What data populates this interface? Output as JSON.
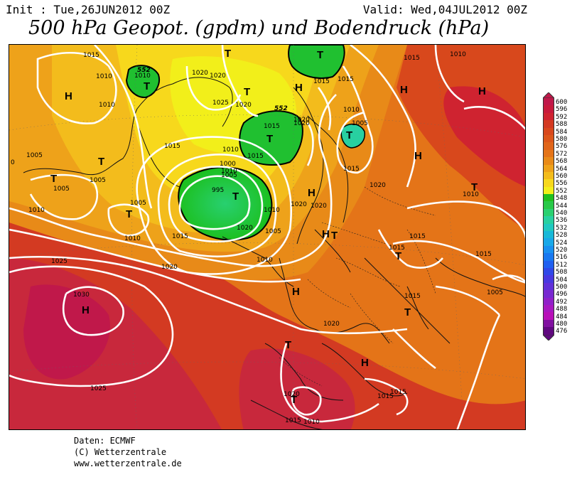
{
  "header": {
    "init": "Init : Tue,26JUN2012 00Z",
    "valid": "Valid: Wed,04JUL2012 00Z",
    "title": "500 hPa Geopot. (gpdm) und Bodendruck (hPa)"
  },
  "credits": {
    "line1": "Daten: ECMWF",
    "line2": "(C) Wetterzentrale",
    "line3": "www.wetterzentrale.de"
  },
  "legend": {
    "levels": [
      "600",
      "596",
      "592",
      "588",
      "584",
      "580",
      "576",
      "572",
      "568",
      "564",
      "560",
      "556",
      "552",
      "548",
      "544",
      "540",
      "536",
      "532",
      "528",
      "524",
      "520",
      "516",
      "512",
      "508",
      "504",
      "500",
      "496",
      "492",
      "488",
      "484",
      "480",
      "476"
    ],
    "colors": {
      "600": "#c0184a",
      "596": "#c81a3c",
      "592": "#cf2330",
      "588": "#d33a22",
      "584": "#d8481c",
      "580": "#dc561a",
      "576": "#e0651a",
      "572": "#e47418",
      "568": "#e88a18",
      "564": "#eea21a",
      "560": "#f3bc1c",
      "556": "#f7d81c",
      "552": "#f2ef1a",
      "548": "#20c020",
      "544": "#28c848",
      "540": "#2ad070",
      "536": "#28d0a0",
      "532": "#20c8c0",
      "528": "#18b8d8",
      "524": "#18a8e8",
      "520": "#1890f0",
      "516": "#1878f0",
      "512": "#2060f0",
      "508": "#3048e8",
      "504": "#4838e0",
      "500": "#6030d8",
      "496": "#7828d0",
      "492": "#9020c8",
      "488": "#a818c0",
      "484": "#b810b8",
      "480": "#8010a0",
      "476": "#600880"
    }
  },
  "pressure_centers": [
    {
      "letter": "H"
    },
    {
      "letter": "T"
    },
    {
      "letter": "T"
    },
    {
      "letter": "T"
    },
    {
      "letter": "H"
    },
    {
      "letter": "H"
    },
    {
      "letter": "T"
    },
    {
      "letter": "T"
    },
    {
      "letter": "T"
    },
    {
      "letter": "T"
    },
    {
      "letter": "H"
    },
    {
      "letter": "H"
    },
    {
      "letter": "T"
    },
    {
      "letter": "T"
    },
    {
      "letter": "H"
    },
    {
      "letter": "T"
    },
    {
      "letter": "H"
    },
    {
      "letter": "T"
    },
    {
      "letter": "T"
    },
    {
      "letter": "H"
    },
    {
      "letter": "T"
    },
    {
      "letter": "H"
    },
    {
      "letter": "T"
    },
    {
      "letter": "T"
    },
    {
      "letter": "H"
    },
    {
      "letter": "T"
    }
  ],
  "isobar_labels": [
    "1015",
    "1010",
    "1010",
    "1020",
    "1020",
    "1025",
    "1020",
    "1015",
    "1015",
    "1015",
    "1020",
    "1015",
    "1010",
    "1005",
    "1005",
    "1005",
    "1010",
    "1005",
    "1010",
    "1005",
    "1010",
    "1010",
    "1000",
    "1005",
    "995",
    "1015",
    "1020",
    "1025",
    "1030",
    "1020",
    "1015",
    "1010",
    "1020",
    "1015",
    "1015",
    "1010",
    "1020",
    "1015",
    "1020",
    "1025",
    "1015",
    "1015",
    "1010",
    "1010",
    "1015",
    "1015",
    "1005",
    "1015",
    "1010",
    "1015",
    "1020",
    "1010",
    "1005",
    "1020",
    "1020",
    "0"
  ],
  "geopotential_labels": [
    "552",
    "552"
  ]
}
